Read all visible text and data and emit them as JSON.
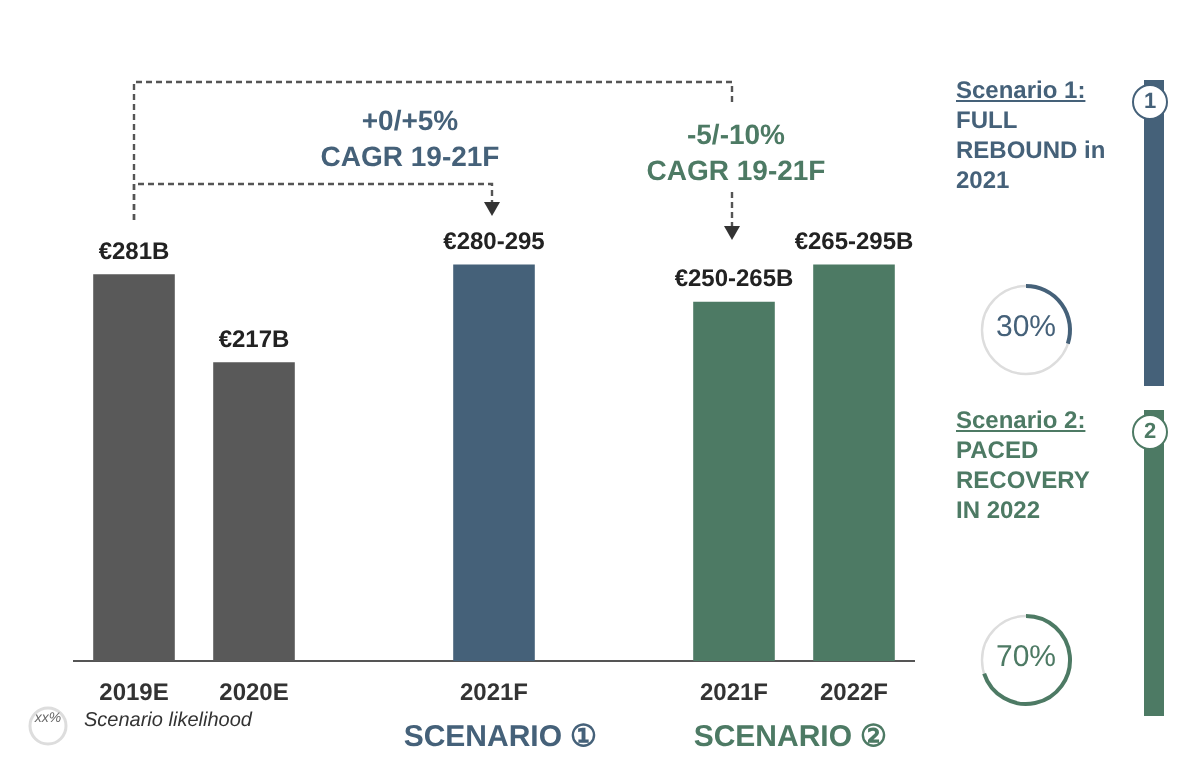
{
  "chart_data": [
    {
      "type": "bar",
      "categories": [
        "2019E",
        "2020E",
        null,
        "2021F",
        null,
        "2021F",
        "2022F"
      ],
      "values": [
        281,
        217,
        null,
        288,
        null,
        261,
        288
      ],
      "colors": [
        "#595959",
        "#595959",
        "#595959",
        "#456179",
        "#4d7a64",
        "#4d7a64",
        "#4d7a64"
      ],
      "value_labels": [
        "€281B",
        "€217B",
        null,
        "€280-295",
        null,
        "€250-265B",
        "€265-295B"
      ],
      "annotations": [
        "+0/+5% CAGR 19-21F",
        "-5/-10% CAGR 19-21F",
        "SCENARIO ①",
        "SCENARIO ②",
        "xx%",
        "Scenario likelihood"
      ]
    },
    {
      "type": "other",
      "title": "Scenario 1:",
      "subtitle": "FULL REBOUND in 2021",
      "colors": [
        "#456179"
      ],
      "annotations": [
        "1",
        "30%"
      ]
    },
    {
      "type": "other",
      "title": "Scenario 2:",
      "subtitle": "PACED RECOVERY IN 2022",
      "colors": [
        "#4d7a64"
      ],
      "annotations": [
        "2",
        "70%"
      ]
    }
  ]
}
